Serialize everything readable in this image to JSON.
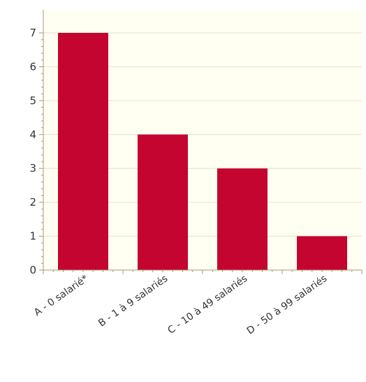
{
  "chart_data": {
    "type": "bar",
    "categories": [
      "A - 0 salarié*",
      "B - 1 à 9 salariés",
      "C - 10 à 49 salariés",
      "D - 50 à 99 salariés"
    ],
    "values": [
      7,
      4,
      3,
      1
    ],
    "title": "",
    "xlabel": "",
    "ylabel": "",
    "ylim": [
      0,
      7
    ],
    "yticks": [
      0,
      1,
      2,
      3,
      4,
      5,
      6,
      7
    ],
    "grid": true,
    "legend": "none"
  },
  "colors": {
    "bar": "#c4052f",
    "plot_background": "#fffff2",
    "grid": "#e3dfc8",
    "axis": "#a89a72",
    "text": "#333333"
  }
}
